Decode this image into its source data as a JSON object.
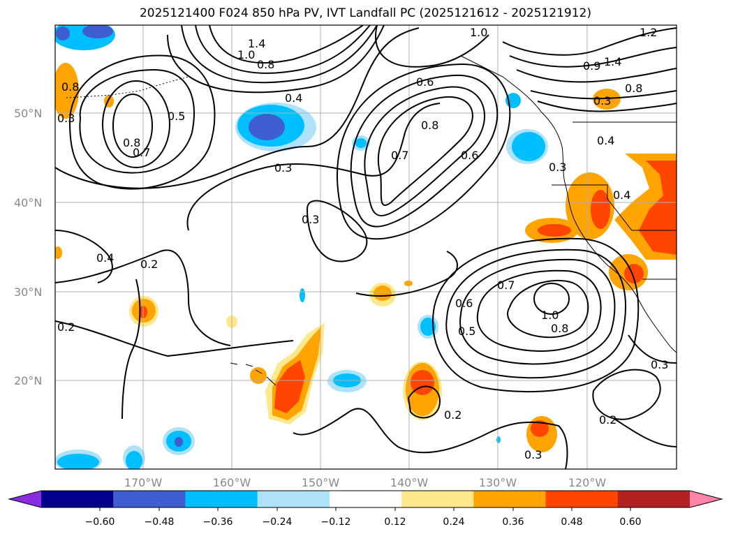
{
  "title": "2025121400 F024 850 hPa PV, IVT Landfall PC (2025121612 - 2025121912)",
  "colors": {
    "pos_012": "#fde98c",
    "pos_024": "#ffa400",
    "pos_036": "#ff4500",
    "neg_012": "#aee2fa",
    "neg_024": "#00bfff",
    "neg_036": "#3f5ecf",
    "contour": "#000000"
  },
  "chart_data": {
    "type": "map",
    "title": "2025121400 F024 850 hPa PV, IVT Landfall PC (2025121612 - 2025121912)",
    "lat_labels": [
      "50°N",
      "40°N",
      "30°N",
      "20°N"
    ],
    "lon_labels": [
      "170°W",
      "160°W",
      "150°W",
      "140°W",
      "130°W",
      "120°W"
    ],
    "grid": true,
    "contour_labels": [
      "1.0",
      "1.2",
      "1.4",
      "1.0",
      "0.8",
      "0.6",
      "0.4",
      "0.5",
      "0.8",
      "0.7",
      "0.3",
      "0.8",
      "0.7",
      "0.6",
      "0.3",
      "0.4",
      "0.3",
      "0.2",
      "0.4",
      "0.2",
      "0.7",
      "0.6",
      "1.0",
      "0.8",
      "0.5",
      "0.2",
      "0.3",
      "0.3",
      "0.2",
      "0.3",
      "0.4",
      "0.8",
      "0.3",
      "0.9",
      "1.4",
      "0.8"
    ],
    "colorbar": {
      "ticks": [
        "−0.60",
        "−0.48",
        "−0.36",
        "−0.24",
        "−0.12",
        "0.12",
        "0.24",
        "0.36",
        "0.48",
        "0.60"
      ],
      "colors": [
        "#8a2be2",
        "#00008b",
        "#3f5ecf",
        "#00bfff",
        "#aee2fa",
        "#ffffff",
        "#fde98c",
        "#ffa400",
        "#ff4500",
        "#b22222",
        "#ff85a8"
      ],
      "extend": "both"
    }
  }
}
